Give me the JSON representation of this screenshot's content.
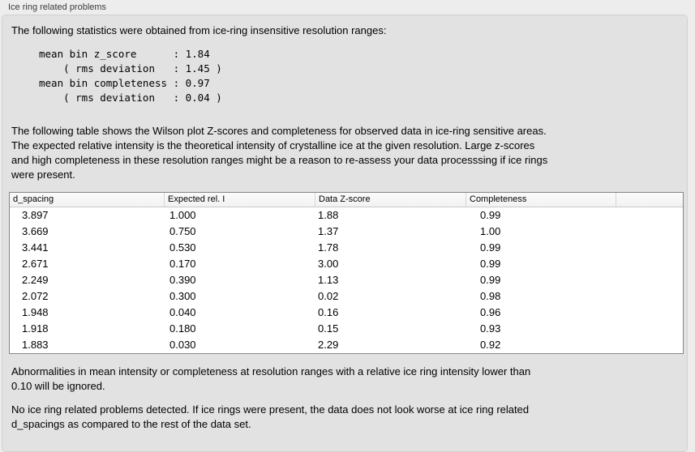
{
  "panel": {
    "title": "Ice ring related problems"
  },
  "intro": "The following statistics were obtained from ice-ring insensitive resolution ranges:",
  "stats": {
    "lines": [
      "mean bin z_score      : 1.84",
      "    ( rms deviation   : 1.45 )",
      "mean bin completeness : 0.97",
      "    ( rms deviation   : 0.04 )"
    ]
  },
  "description": {
    "lines": [
      "The following table shows the Wilson plot Z-scores and completeness for observed data in ice-ring sensitive areas.",
      "The expected relative intensity is the theoretical intensity of crystalline ice at the given resolution. Large z-scores",
      "and high completeness in these resolution ranges might be a reason to re-assess your data processsing if ice rings",
      "were present."
    ]
  },
  "table": {
    "columns": [
      "d_spacing",
      "Expected rel. I",
      "Data Z-score",
      "Completeness",
      ""
    ],
    "rows": [
      [
        "3.897",
        "1.000",
        "1.88",
        "0.99"
      ],
      [
        "3.669",
        "0.750",
        "1.37",
        "1.00"
      ],
      [
        "3.441",
        "0.530",
        "1.78",
        "0.99"
      ],
      [
        "2.671",
        "0.170",
        "3.00",
        "0.99"
      ],
      [
        "2.249",
        "0.390",
        "1.13",
        "0.99"
      ],
      [
        "2.072",
        "0.300",
        "0.02",
        "0.98"
      ],
      [
        "1.948",
        "0.040",
        "0.16",
        "0.96"
      ],
      [
        "1.918",
        "0.180",
        "0.15",
        "0.93"
      ],
      [
        "1.883",
        "0.030",
        "2.29",
        "0.92"
      ]
    ]
  },
  "note": {
    "lines": [
      "Abnormalities in mean intensity or completeness at resolution ranges with a relative ice ring intensity lower than",
      "0.10 will be ignored."
    ]
  },
  "conclusion": {
    "lines": [
      "No ice ring related problems detected. If ice rings were present, the data does not look worse at ice ring related",
      "d_spacings as compared to the rest of the data set."
    ]
  }
}
